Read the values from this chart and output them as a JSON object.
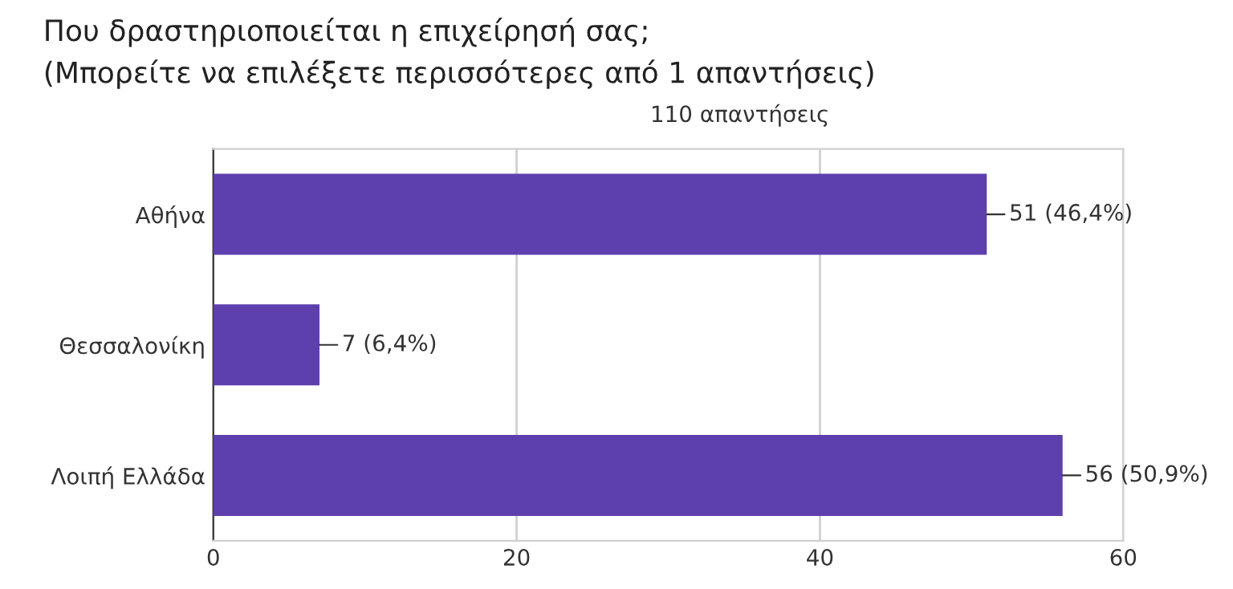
{
  "chart_data": {
    "type": "bar",
    "orientation": "horizontal",
    "title": "Που δραστηριοποιείται η επιχείρησή σας;\n(Μπορείτε να επιλέξετε περισσότερες από 1 απαντήσεις)",
    "subtitle": "110 απαντήσεις",
    "categories": [
      "Αθήνα",
      "Θεσσαλονίκη",
      "Λοιπή Ελλάδα"
    ],
    "values": [
      51,
      7,
      56
    ],
    "value_labels": [
      "51 (46,4%)",
      "7 (6,4%)",
      "56 (50,9%)"
    ],
    "color": "#5e3fae",
    "xlim": [
      0,
      60
    ],
    "xticks": [
      0,
      20,
      40,
      60
    ],
    "grid": "x"
  }
}
